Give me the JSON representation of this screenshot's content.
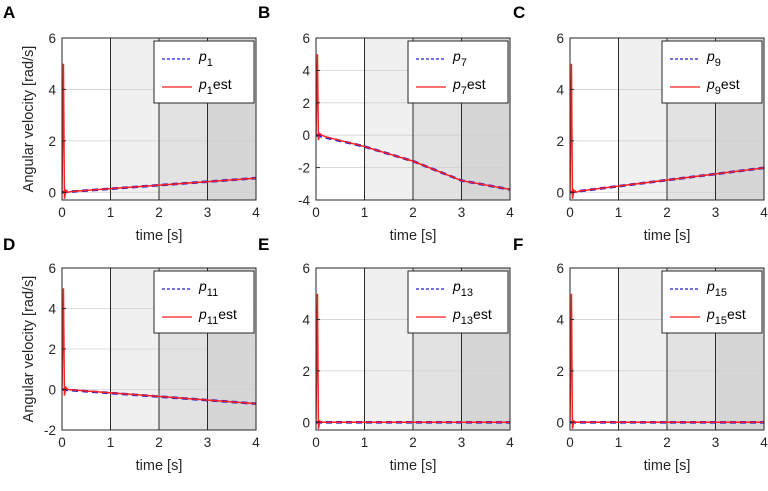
{
  "figure": {
    "colors": {
      "true_line": "#1f1fd6",
      "est_line": "#ff1f1f",
      "shade_1": "#ffffff",
      "shade_2": "#f0f0f0",
      "shade_3": "#e2e2e2",
      "shade_4": "#d6d6d6"
    }
  },
  "chart_data": [
    {
      "panel": "A",
      "type": "line",
      "xlabel": "time [s]",
      "ylabel": "Angular velocity [rad/s]",
      "xlim": [
        0,
        4
      ],
      "ylim": [
        -0.3,
        6
      ],
      "xticks": [
        "0",
        "1",
        "2",
        "3",
        "4"
      ],
      "yticks": [
        0,
        2,
        4,
        6
      ],
      "ytick_labels": [
        "0",
        "2",
        "4",
        "6"
      ],
      "legend": {
        "position": "top-right",
        "sym_base": "p",
        "sym_sub": "1",
        "est_suffix": "est"
      },
      "series": [
        {
          "name": "p1",
          "style": "dashed",
          "x": [
            0,
            4
          ],
          "y": [
            0.0,
            0.55
          ]
        },
        {
          "name": "p1est",
          "style": "solid",
          "x": [
            0,
            0.03,
            0.05,
            0.08,
            0.12,
            0.2,
            4
          ],
          "y": [
            0.0,
            5.0,
            -0.25,
            0.08,
            0.0,
            0.03,
            0.55
          ]
        }
      ]
    },
    {
      "panel": "B",
      "type": "line",
      "xlabel": "time [s]",
      "ylabel": "",
      "xlim": [
        0,
        4
      ],
      "ylim": [
        -4,
        6
      ],
      "xticks": [
        "0",
        "1",
        "2",
        "3",
        "4"
      ],
      "yticks": [
        -4,
        -2,
        0,
        2,
        4,
        6
      ],
      "ytick_labels": [
        "-4",
        "-2",
        "0",
        "2",
        "4",
        "6"
      ],
      "legend": {
        "position": "top-right",
        "sym_base": "p",
        "sym_sub": "7",
        "est_suffix": "est"
      },
      "series": [
        {
          "name": "p7",
          "style": "dashed",
          "x": [
            0,
            1,
            2,
            3,
            4
          ],
          "y": [
            0.0,
            -0.7,
            -1.6,
            -2.8,
            -3.35
          ]
        },
        {
          "name": "p7est",
          "style": "solid",
          "x": [
            0,
            0.03,
            0.05,
            0.08,
            0.12,
            0.2,
            1,
            2,
            3,
            4
          ],
          "y": [
            0.0,
            5.0,
            -0.3,
            0.1,
            0.0,
            -0.1,
            -0.7,
            -1.6,
            -2.8,
            -3.35
          ]
        }
      ]
    },
    {
      "panel": "C",
      "type": "line",
      "xlabel": "time [s]",
      "ylabel": "",
      "xlim": [
        0,
        4
      ],
      "ylim": [
        -0.3,
        6
      ],
      "xticks": [
        "0",
        "1",
        "2",
        "3",
        "4"
      ],
      "yticks": [
        0,
        2,
        4,
        6
      ],
      "ytick_labels": [
        "0",
        "2",
        "4",
        "6"
      ],
      "legend": {
        "position": "top-right",
        "sym_base": "p",
        "sym_sub": "9",
        "est_suffix": "est"
      },
      "series": [
        {
          "name": "p9",
          "style": "dashed",
          "x": [
            0,
            4
          ],
          "y": [
            0.0,
            0.95
          ]
        },
        {
          "name": "p9est",
          "style": "solid",
          "x": [
            0,
            0.03,
            0.05,
            0.08,
            0.12,
            0.2,
            4
          ],
          "y": [
            0.0,
            5.0,
            -0.25,
            0.08,
            0.0,
            0.05,
            0.95
          ]
        }
      ]
    },
    {
      "panel": "D",
      "type": "line",
      "xlabel": "time [s]",
      "ylabel": "Angular velocity [rad/s]",
      "xlim": [
        0,
        4
      ],
      "ylim": [
        -2,
        6
      ],
      "xticks": [
        "0",
        "1",
        "2",
        "3",
        "4"
      ],
      "yticks": [
        -2,
        0,
        2,
        4,
        6
      ],
      "ytick_labels": [
        "-2",
        "0",
        "2",
        "4",
        "6"
      ],
      "legend": {
        "position": "top-right",
        "sym_base": "p",
        "sym_sub": "11",
        "est_suffix": "est"
      },
      "series": [
        {
          "name": "p11",
          "style": "dashed",
          "x": [
            0,
            4
          ],
          "y": [
            0.0,
            -0.7
          ]
        },
        {
          "name": "p11est",
          "style": "solid",
          "x": [
            0,
            0.03,
            0.05,
            0.08,
            0.12,
            0.2,
            4
          ],
          "y": [
            0.0,
            5.0,
            -0.3,
            0.1,
            0.0,
            -0.02,
            -0.7
          ]
        }
      ]
    },
    {
      "panel": "E",
      "type": "line",
      "xlabel": "time [s]",
      "ylabel": "",
      "xlim": [
        0,
        4
      ],
      "ylim": [
        -0.3,
        6
      ],
      "xticks": [
        "0",
        "1",
        "2",
        "3",
        "4"
      ],
      "yticks": [
        0,
        2,
        4,
        6
      ],
      "ytick_labels": [
        "0",
        "2",
        "4",
        "6"
      ],
      "legend": {
        "position": "top-right",
        "sym_base": "p",
        "sym_sub": "13",
        "est_suffix": "est"
      },
      "series": [
        {
          "name": "p13",
          "style": "dashed",
          "x": [
            0,
            4
          ],
          "y": [
            0.0,
            0.0
          ]
        },
        {
          "name": "p13est",
          "style": "solid",
          "x": [
            0,
            0.03,
            0.05,
            0.08,
            0.12,
            4
          ],
          "y": [
            0.0,
            5.0,
            -0.25,
            0.05,
            0.0,
            0.0
          ]
        }
      ]
    },
    {
      "panel": "F",
      "type": "line",
      "xlabel": "time [s]",
      "ylabel": "",
      "xlim": [
        0,
        4
      ],
      "ylim": [
        -0.3,
        6
      ],
      "xticks": [
        "0",
        "1",
        "2",
        "3",
        "4"
      ],
      "yticks": [
        0,
        2,
        4,
        6
      ],
      "ytick_labels": [
        "0",
        "2",
        "4",
        "6"
      ],
      "legend": {
        "position": "top-right",
        "sym_base": "p",
        "sym_sub": "15",
        "est_suffix": "est"
      },
      "series": [
        {
          "name": "p15",
          "style": "dashed",
          "x": [
            0,
            4
          ],
          "y": [
            0.0,
            0.0
          ]
        },
        {
          "name": "p15est",
          "style": "solid",
          "x": [
            0,
            0.03,
            0.05,
            0.08,
            0.12,
            4
          ],
          "y": [
            0.0,
            5.0,
            -0.25,
            0.05,
            0.0,
            0.0
          ]
        }
      ]
    }
  ]
}
